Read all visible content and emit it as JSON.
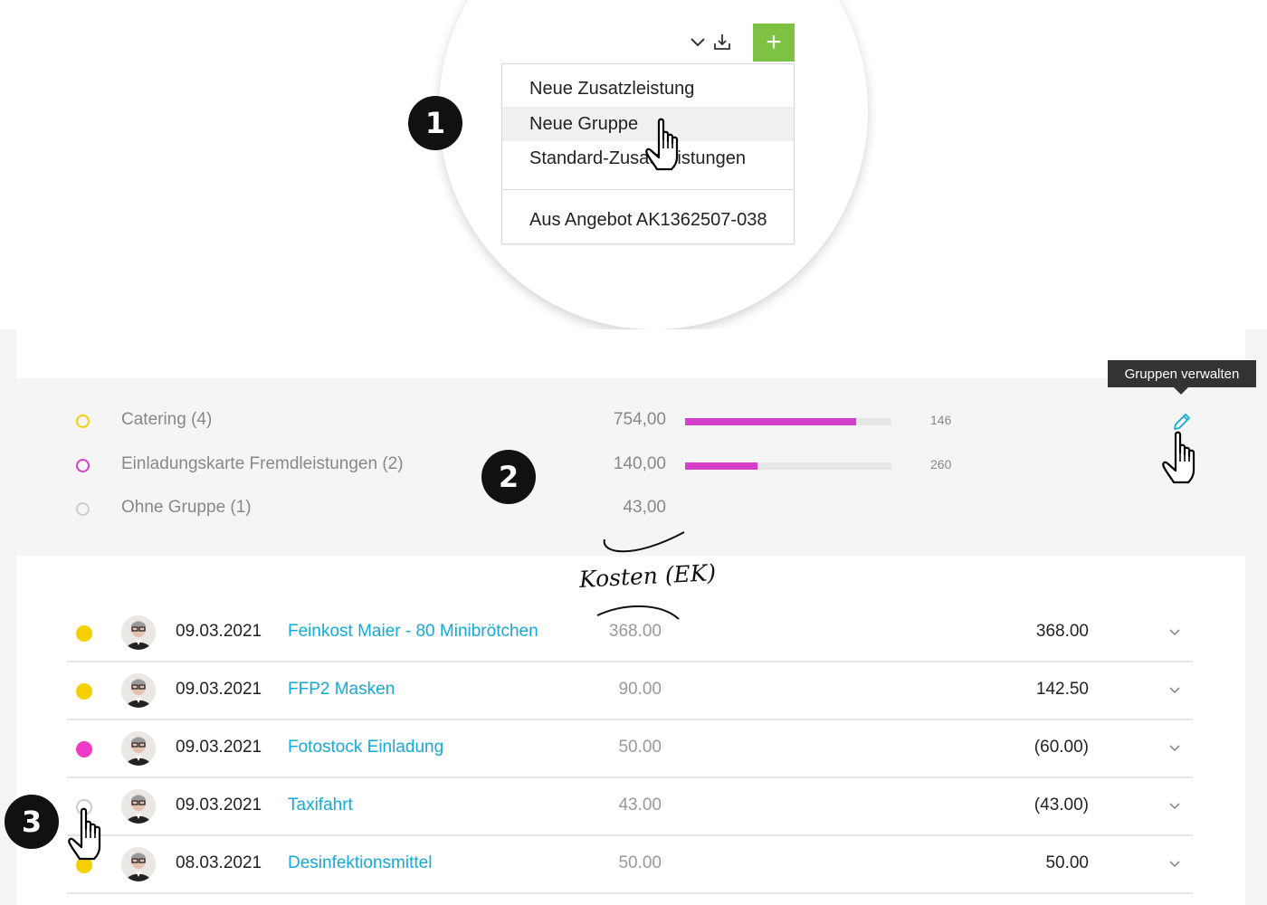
{
  "toolbar": {
    "chevron_icon": "chevron-down-icon",
    "download_icon": "download-icon",
    "add_label": "+",
    "add_color": "#7dc242"
  },
  "dropdown": {
    "items": [
      {
        "label": "Neue Zusatzleistung"
      },
      {
        "label": "Neue Gruppe"
      },
      {
        "label": "Standard-Zusatzleistungen"
      },
      {
        "label": "Aus Angebot AK1362507-038"
      }
    ]
  },
  "badges": [
    "1",
    "2",
    "3"
  ],
  "tooltip": {
    "label": "Gruppen verwalten"
  },
  "groups": [
    {
      "name": "Catering (4)",
      "amount": "754,00",
      "color": "#f5d000",
      "bar_fraction": 0.83,
      "count": "146"
    },
    {
      "name": "Einladungskarte Fremdleistungen (2)",
      "amount": "140,00",
      "color": "#d63fc9",
      "bar_fraction": 0.35,
      "count": "260"
    },
    {
      "name": "Ohne Gruppe (1)",
      "amount": "43,00",
      "color": "#cccccc",
      "bar_fraction": null,
      "count": ""
    }
  ],
  "annotation": {
    "text": "Kosten (EK)"
  },
  "items": [
    {
      "date": "09.03.2021",
      "title": "Feinkost Maier - 80 Minibrötchen",
      "cost": "368.00",
      "price": "368.00",
      "group_color": "#f5d000",
      "filled": true
    },
    {
      "date": "09.03.2021",
      "title": "FFP2 Masken",
      "cost": "90.00",
      "price": "142.50",
      "group_color": "#f5d000",
      "filled": true
    },
    {
      "date": "09.03.2021",
      "title": "Fotostock Einladung",
      "cost": "50.00",
      "price": "(60.00)",
      "group_color": "#f03ac8",
      "filled": true
    },
    {
      "date": "09.03.2021",
      "title": "Taxifahrt",
      "cost": "43.00",
      "price": "(43.00)",
      "group_color": "#cccccc",
      "filled": false
    },
    {
      "date": "08.03.2021",
      "title": "Desinfektionsmittel",
      "cost": "50.00",
      "price": "50.00",
      "group_color": "#f5d000",
      "filled": true
    }
  ],
  "colors": {
    "link": "#14a9d7",
    "accent_bar": "#d63fc9",
    "badge": "#111111"
  }
}
